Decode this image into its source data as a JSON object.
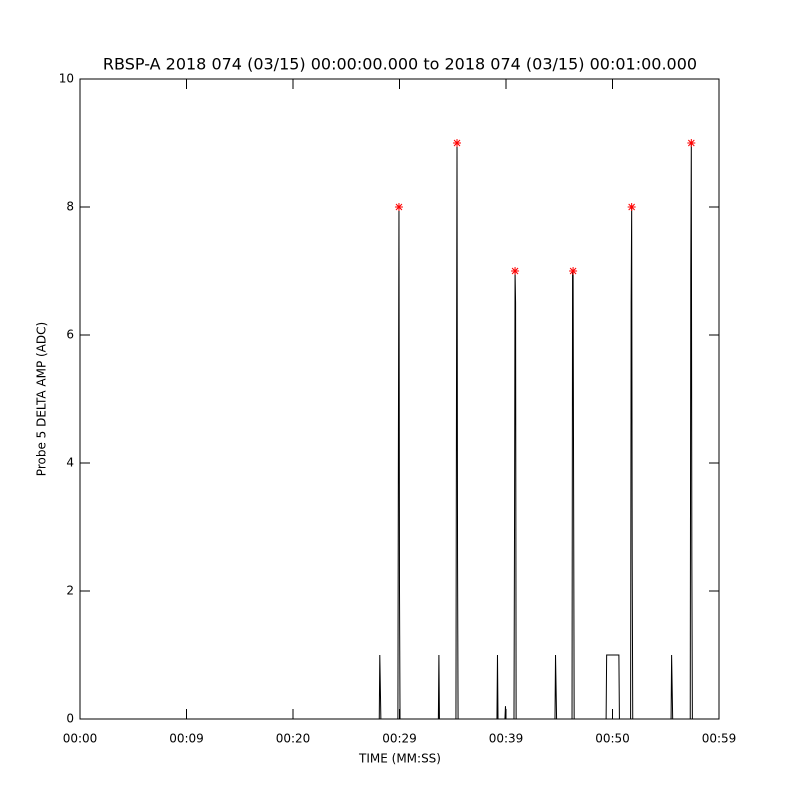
{
  "chart_data": {
    "type": "line",
    "title": "RBSP-A 2018 074 (03/15) 00:00:00.000 to 2018 074 (03/15) 00:01:00.000",
    "xlabel": "TIME (MM:SS)",
    "ylabel": "Probe 5 DELTA AMP (ADC)",
    "xlim": [
      0,
      60
    ],
    "ylim": [
      0,
      10
    ],
    "xticks": [
      {
        "value": 0,
        "label": "00:00"
      },
      {
        "value": 10,
        "label": "00:09"
      },
      {
        "value": 20,
        "label": "00:20"
      },
      {
        "value": 30,
        "label": "00:29"
      },
      {
        "value": 40,
        "label": "00:39"
      },
      {
        "value": 50,
        "label": "00:50"
      },
      {
        "value": 60,
        "label": "00:59"
      }
    ],
    "yticks": [
      0,
      2,
      4,
      6,
      8,
      10
    ],
    "series": [
      {
        "type": "line",
        "color": "#000000",
        "x": [
          0,
          28.1,
          28.15,
          28.2,
          28.25,
          29.85,
          29.9,
          29.95,
          30.0,
          30.05,
          33.65,
          33.7,
          33.75,
          35.3,
          35.35,
          35.4,
          35.45,
          35.5,
          39.15,
          39.2,
          39.25,
          39.9,
          39.95,
          40.0,
          40.75,
          40.8,
          40.85,
          40.9,
          40.95,
          44.6,
          44.65,
          44.7,
          44.75,
          46.2,
          46.25,
          46.3,
          46.35,
          46.4,
          49.4,
          49.45,
          50.6,
          50.65,
          51.7,
          51.75,
          51.8,
          51.85,
          51.9,
          55.5,
          55.55,
          55.6,
          55.65,
          57.3,
          57.35,
          57.4,
          57.45,
          57.5,
          60
        ],
        "values": [
          0,
          0,
          1,
          0.5,
          0,
          0,
          4.5,
          8,
          2,
          0,
          0,
          1,
          0,
          0,
          5,
          9,
          2.5,
          0,
          0,
          1,
          0,
          0,
          0.2,
          0,
          0,
          3,
          7,
          6.5,
          0,
          0,
          1,
          0.5,
          0,
          0,
          7,
          7,
          3.5,
          0,
          0,
          1,
          1,
          0,
          0,
          6.5,
          8,
          2.5,
          0,
          0,
          1,
          0.5,
          0,
          0,
          7,
          9,
          2.5,
          0,
          0
        ]
      },
      {
        "type": "scatter",
        "color": "#ff0000",
        "x": [
          29.95,
          35.4,
          40.85,
          46.3,
          51.8,
          57.4
        ],
        "values": [
          8,
          9,
          7,
          7,
          8,
          9
        ]
      }
    ]
  }
}
